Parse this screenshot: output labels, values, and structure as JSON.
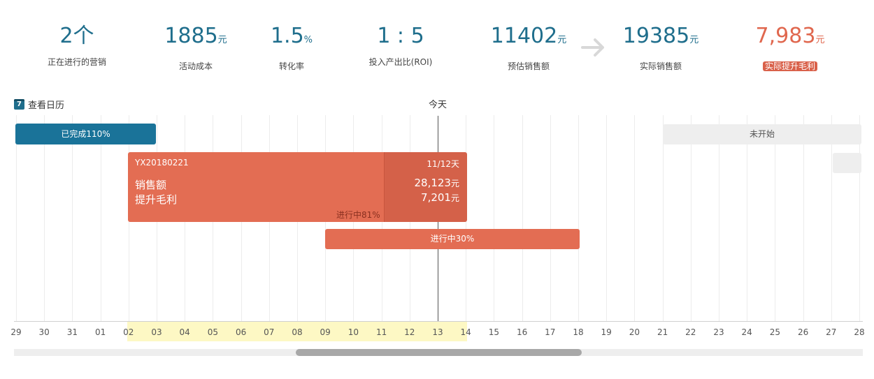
{
  "stats": [
    {
      "value": "2",
      "unit": "个",
      "label": "正在进行的营销"
    },
    {
      "value": "1885",
      "unit": "元",
      "label": "活动成本"
    },
    {
      "value": "1.5",
      "unit": "%",
      "label": "转化率"
    },
    {
      "value": "1 : 5",
      "unit": "",
      "label": "投入产出比(ROI)"
    },
    {
      "value": "11402",
      "unit": "元",
      "label": "预估销售额"
    },
    {
      "value": "19385",
      "unit": "元",
      "label": "实际销售额"
    },
    {
      "value": "7,983",
      "unit": "元",
      "label": "实际提升毛利"
    }
  ],
  "calendar_link": "查看日历",
  "today_label": "今天",
  "axis_days": [
    "29",
    "30",
    "31",
    "01",
    "02",
    "03",
    "04",
    "05",
    "06",
    "07",
    "08",
    "09",
    "10",
    "11",
    "12",
    "13",
    "14",
    "15",
    "16",
    "17",
    "18",
    "19",
    "20",
    "21",
    "22",
    "23",
    "24",
    "25",
    "26",
    "27",
    "28"
  ],
  "bars": {
    "completed": {
      "label": "已完成110%"
    },
    "not_started": {
      "label": "未开始"
    },
    "campaign": {
      "code": "YX20180221",
      "days": "11/12天",
      "sales_label": "销售额",
      "sales_value": "28,123",
      "profit_label": "提升毛利",
      "profit_value": "7,201",
      "unit": "元",
      "progress_label": "进行中81%"
    },
    "in_progress": {
      "label": "进行中30%"
    }
  },
  "colors": {
    "primary": "#1f6e8c",
    "accent": "#e36d53",
    "accent_dark": "#d46149",
    "muted": "#eeeeee"
  }
}
